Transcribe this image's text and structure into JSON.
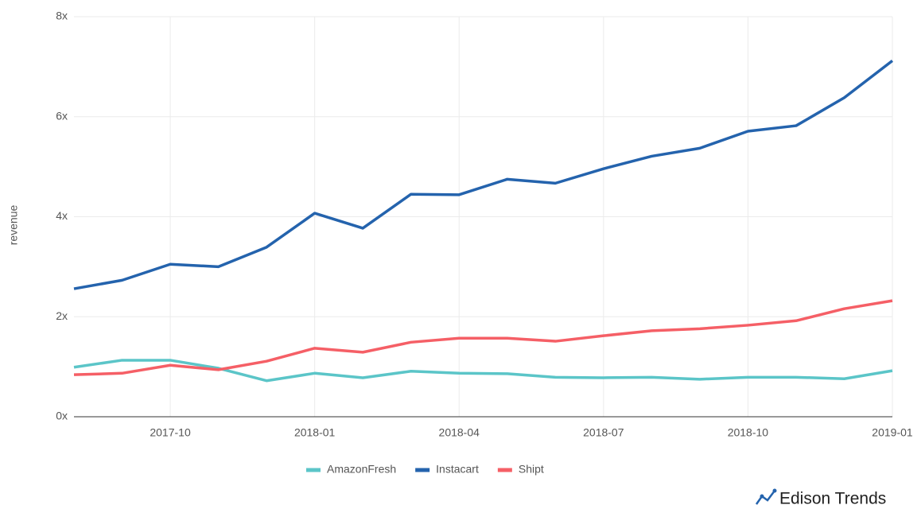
{
  "chart_data": {
    "type": "line",
    "y_label": "revenue",
    "brand": "Edison Trends",
    "x": [
      "2017-08",
      "2017-09",
      "2017-10",
      "2017-11",
      "2017-12",
      "2018-01",
      "2018-02",
      "2018-03",
      "2018-04",
      "2018-05",
      "2018-06",
      "2018-07",
      "2018-08",
      "2018-09",
      "2018-10",
      "2018-11",
      "2018-12",
      "2019-01"
    ],
    "xticks": [
      "2017-10",
      "2018-01",
      "2018-04",
      "2018-07",
      "2018-10",
      "2019-01"
    ],
    "ylim": [
      0,
      8
    ],
    "yticks": [
      {
        "value": 0,
        "label": "0x"
      },
      {
        "value": 2,
        "label": "2x"
      },
      {
        "value": 4,
        "label": "4x"
      },
      {
        "value": 6,
        "label": "6x"
      },
      {
        "value": 8,
        "label": "8x"
      }
    ],
    "grid": true,
    "legend": "bottom",
    "series": [
      {
        "name": "AmazonFresh",
        "color": "#5bc5c8",
        "values": [
          0.99,
          1.13,
          1.13,
          0.97,
          0.72,
          0.87,
          0.78,
          0.91,
          0.87,
          0.86,
          0.79,
          0.78,
          0.79,
          0.75,
          0.79,
          0.79,
          0.76,
          0.92
        ]
      },
      {
        "name": "Instacart",
        "color": "#2463ad",
        "values": [
          2.56,
          2.73,
          3.05,
          3.0,
          3.39,
          4.07,
          3.77,
          4.45,
          4.44,
          4.75,
          4.67,
          4.96,
          5.21,
          5.37,
          5.71,
          5.82,
          6.38,
          7.12
        ]
      },
      {
        "name": "Shipt",
        "color": "#f55f66",
        "values": [
          0.84,
          0.87,
          1.03,
          0.94,
          1.11,
          1.37,
          1.29,
          1.49,
          1.57,
          1.57,
          1.51,
          1.62,
          1.72,
          1.76,
          1.83,
          1.92,
          2.16,
          2.32
        ]
      }
    ]
  }
}
